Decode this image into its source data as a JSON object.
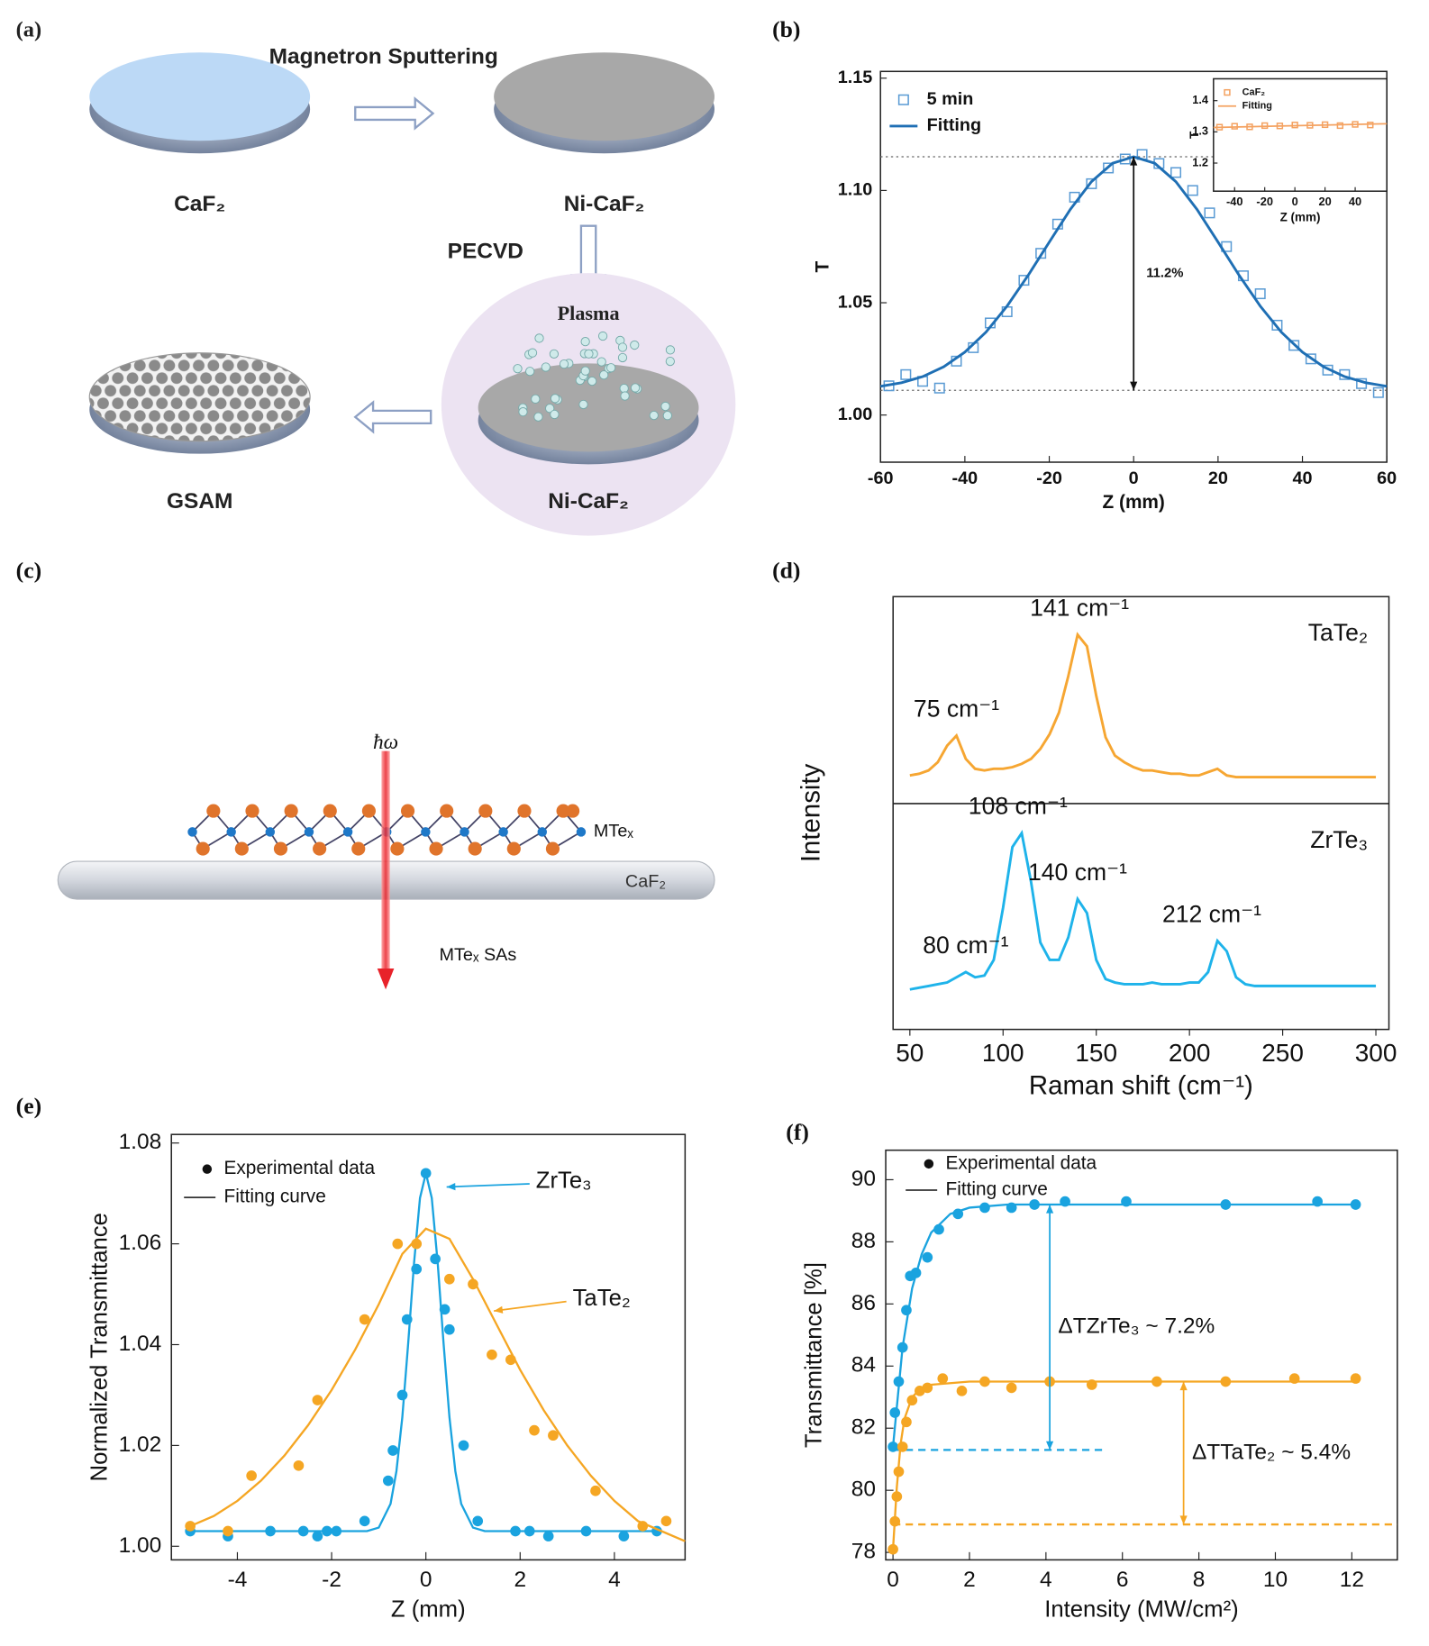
{
  "diagram_a": {
    "label": "(a)",
    "texts": [
      "Magnetron Sputtering",
      "CaF₂",
      "Ni-CaF₂",
      "PECVD",
      "Plasma",
      "Ni-CaF₂",
      "GSAM"
    ]
  },
  "diagram_c": {
    "label": "(c)",
    "texts": [
      "ħω",
      "MTeₓ",
      "CaF₂",
      "MTeₓ SAs"
    ]
  },
  "chart_data": [
    {
      "type": "xy",
      "label": "(b)",
      "xlabel": "Z (mm)",
      "ylabel": "T",
      "xlim": [
        -60,
        60
      ],
      "ylim": [
        0.979,
        1.153
      ],
      "xticks": [
        -60,
        -40,
        -20,
        0,
        20,
        40,
        60
      ],
      "yticks": [
        {
          "value": 1,
          "label": "1.00"
        },
        {
          "value": 1.05,
          "label": "1.05"
        },
        {
          "value": 1.1,
          "label": "1.10"
        },
        {
          "value": 1.15,
          "label": "1.15"
        }
      ],
      "reference_lines": [
        1.115,
        1.011
      ],
      "annotations": [
        {
          "text": "11.2%",
          "x": 0,
          "y_from": 1.115,
          "y_to": 1.011
        }
      ],
      "series": [
        {
          "name": "5 min",
          "mode": "markers",
          "marker": "square",
          "color": "#5a9bd4",
          "x": [
            -58,
            -54,
            -50,
            -46,
            -42,
            -38,
            -34,
            -30,
            -26,
            -22,
            -18,
            -14,
            -10,
            -6,
            -2,
            2,
            6,
            10,
            14,
            18,
            22,
            26,
            30,
            34,
            38,
            42,
            46,
            50,
            54,
            58
          ],
          "values": [
            1.013,
            1.018,
            1.015,
            1.012,
            1.024,
            1.03,
            1.041,
            1.046,
            1.06,
            1.072,
            1.085,
            1.097,
            1.103,
            1.11,
            1.114,
            1.116,
            1.112,
            1.108,
            1.1,
            1.09,
            1.075,
            1.062,
            1.054,
            1.04,
            1.031,
            1.025,
            1.02,
            1.018,
            1.014,
            1.01
          ]
        },
        {
          "name": "Fitting",
          "mode": "line",
          "color": "#1f6fb4",
          "x": [
            -60,
            -55,
            -50,
            -45,
            -40,
            -35,
            -30,
            -25,
            -20,
            -15,
            -10,
            -5,
            0,
            5,
            10,
            15,
            20,
            25,
            30,
            35,
            40,
            45,
            50,
            55,
            60
          ],
          "values": [
            1.0128,
            1.0144,
            1.0171,
            1.0215,
            1.028,
            1.0369,
            1.0485,
            1.0622,
            1.077,
            1.0916,
            1.1039,
            1.1121,
            1.115,
            1.1121,
            1.1039,
            1.0916,
            1.077,
            1.0622,
            1.0485,
            1.0369,
            1.028,
            1.0215,
            1.0171,
            1.0144,
            1.0128
          ]
        }
      ]
    },
    {
      "type": "xy",
      "xlabel": "Z (mm)",
      "ylabel": "T",
      "xlim": [
        -54,
        61
      ],
      "ylim": [
        1.11,
        1.47
      ],
      "xticks": [
        -40,
        -20,
        0,
        20,
        40
      ],
      "yticks": [
        1.2,
        1.3,
        1.4
      ],
      "series": [
        {
          "name": "CaF₂",
          "mode": "markers",
          "marker": "square",
          "color": "#f4a261",
          "x": [
            -50,
            -40,
            -30,
            -20,
            -10,
            0,
            10,
            20,
            30,
            40,
            50
          ],
          "values": [
            1.315,
            1.318,
            1.316,
            1.32,
            1.319,
            1.322,
            1.321,
            1.323,
            1.32,
            1.324,
            1.322
          ]
        },
        {
          "name": "Fitting",
          "mode": "line",
          "color": "#f4a261",
          "x": [
            -54,
            61
          ],
          "values": [
            1.314,
            1.326
          ]
        }
      ]
    },
    {
      "type": "stacked_line",
      "label": "(d)",
      "xlabel": "Raman shift (cm⁻¹)",
      "ylabel": "Intensity",
      "xlim": [
        41,
        307
      ],
      "xticks": [
        50,
        100,
        150,
        200,
        250,
        300
      ],
      "x": [
        50,
        55,
        60,
        65,
        70,
        75,
        80,
        85,
        90,
        95,
        100,
        105,
        110,
        115,
        120,
        125,
        130,
        135,
        140,
        145,
        150,
        155,
        160,
        165,
        170,
        175,
        180,
        185,
        190,
        195,
        200,
        205,
        210,
        215,
        220,
        225,
        230,
        235,
        240,
        245,
        250,
        255,
        260,
        265,
        270,
        275,
        280,
        285,
        290,
        295,
        300
      ],
      "series": [
        {
          "name": "TaTe₂",
          "color": "#f6a632",
          "ylim": [
            -0.05,
            1.2
          ],
          "values": [
            0.12,
            0.13,
            0.15,
            0.2,
            0.3,
            0.36,
            0.22,
            0.16,
            0.15,
            0.16,
            0.16,
            0.17,
            0.19,
            0.22,
            0.28,
            0.37,
            0.5,
            0.72,
            0.97,
            0.9,
            0.6,
            0.35,
            0.24,
            0.2,
            0.17,
            0.15,
            0.15,
            0.14,
            0.13,
            0.13,
            0.12,
            0.12,
            0.14,
            0.16,
            0.12,
            0.11,
            0.11,
            0.11,
            0.11,
            0.11,
            0.11,
            0.11,
            0.11,
            0.11,
            0.11,
            0.11,
            0.11,
            0.11,
            0.11,
            0.11,
            0.11
          ]
        },
        {
          "name": "ZrTe₃",
          "color": "#1eb3ea",
          "ylim": [
            -0.15,
            1.15
          ],
          "values": [
            0.08,
            0.09,
            0.1,
            0.11,
            0.12,
            0.15,
            0.18,
            0.15,
            0.16,
            0.25,
            0.55,
            0.9,
            0.98,
            0.7,
            0.35,
            0.25,
            0.25,
            0.38,
            0.6,
            0.52,
            0.25,
            0.14,
            0.12,
            0.11,
            0.11,
            0.11,
            0.12,
            0.11,
            0.11,
            0.11,
            0.12,
            0.12,
            0.18,
            0.36,
            0.3,
            0.15,
            0.11,
            0.1,
            0.1,
            0.1,
            0.1,
            0.1,
            0.1,
            0.1,
            0.1,
            0.1,
            0.1,
            0.1,
            0.1,
            0.1,
            0.1
          ]
        }
      ],
      "annotations": [
        {
          "text": "75 cm⁻¹",
          "x": 75,
          "series": 0
        },
        {
          "text": "141 cm⁻¹",
          "x": 141,
          "series": 0
        },
        {
          "text": "80 cm⁻¹",
          "x": 80,
          "series": 1
        },
        {
          "text": "108 cm⁻¹",
          "x": 108,
          "series": 1
        },
        {
          "text": "140 cm⁻¹",
          "x": 140,
          "series": 1
        },
        {
          "text": "212 cm⁻¹",
          "x": 212,
          "series": 1
        }
      ]
    },
    {
      "type": "xy",
      "label": "(e)",
      "xlabel": "Z (mm)",
      "ylabel": "Normalized Transmittance",
      "xlim": [
        -5.4,
        5.5
      ],
      "ylim": [
        0.9973,
        1.0817
      ],
      "xticks": [
        -4,
        -2,
        0,
        2,
        4
      ],
      "yticks": [
        {
          "value": 1,
          "label": "1.00"
        },
        {
          "value": 1.02,
          "label": "1.02"
        },
        {
          "value": 1.04,
          "label": "1.04"
        },
        {
          "value": 1.06,
          "label": "1.06"
        },
        {
          "value": 1.08,
          "label": "1.08"
        }
      ],
      "legend": [
        {
          "text": "Experimental data",
          "marker": "circle"
        },
        {
          "text": "Fitting curve",
          "marker": "line"
        }
      ],
      "series": [
        {
          "name": "ZrTe₃",
          "mode": "line",
          "color": "#1aa3df",
          "x": [
            -5,
            -2,
            -1.5,
            -1.25,
            -1,
            -0.75,
            -0.625,
            -0.5,
            -0.375,
            -0.25,
            -0.125,
            0,
            0.125,
            0.25,
            0.375,
            0.5,
            0.625,
            0.75,
            1,
            1.25,
            1.5,
            2,
            5
          ],
          "values": [
            1.003,
            1.003,
            1.003,
            1.003,
            1.0037,
            1.0084,
            1.0149,
            1.0256,
            1.0403,
            1.0563,
            1.0691,
            1.074,
            1.0691,
            1.0563,
            1.0403,
            1.0256,
            1.0149,
            1.0084,
            1.0037,
            1.003,
            1.003,
            1.003,
            1.003
          ]
        },
        {
          "mode": "markers",
          "marker": "circle",
          "color": "#1aa3df",
          "x": [
            -5,
            -4.2,
            -3.3,
            -2.6,
            -2.3,
            -2.1,
            -1.9,
            -1.3,
            -0.8,
            -0.7,
            -0.5,
            -0.4,
            -0.2,
            0,
            0.2,
            0.4,
            0.5,
            0.8,
            1.1,
            1.9,
            2.2,
            2.6,
            3.4,
            4.2,
            4.9
          ],
          "values": [
            1.003,
            1.002,
            1.003,
            1.003,
            1.002,
            1.003,
            1.003,
            1.005,
            1.013,
            1.019,
            1.03,
            1.045,
            1.055,
            1.074,
            1.057,
            1.047,
            1.043,
            1.02,
            1.005,
            1.003,
            1.003,
            1.002,
            1.003,
            1.002,
            1.003
          ]
        },
        {
          "name": "TaTe₂",
          "mode": "line",
          "color": "#f5a623",
          "x": [
            -5,
            -4.5,
            -4,
            -3.5,
            -3,
            -2.5,
            -2,
            -1.5,
            -1,
            -0.5,
            0,
            0.5,
            1,
            1.5,
            2,
            2.5,
            3,
            3.5,
            4,
            4.5,
            5,
            5.5
          ],
          "values": [
            1.004,
            1.006,
            1.009,
            1.013,
            1.018,
            1.024,
            1.031,
            1.039,
            1.048,
            1.058,
            1.063,
            1.061,
            1.053,
            1.044,
            1.035,
            1.027,
            1.02,
            1.014,
            1.009,
            1.005,
            1.003,
            1.001
          ]
        },
        {
          "mode": "markers",
          "marker": "circle",
          "color": "#f5a623",
          "x": [
            -5,
            -4.2,
            -3.7,
            -2.7,
            -2.3,
            -1.3,
            -0.6,
            -0.2,
            0.5,
            1,
            1.4,
            1.8,
            2.3,
            2.7,
            3.6,
            4.6,
            5.1
          ],
          "values": [
            1.004,
            1.003,
            1.014,
            1.016,
            1.029,
            1.045,
            1.06,
            1.06,
            1.053,
            1.052,
            1.038,
            1.037,
            1.023,
            1.022,
            1.011,
            1.004,
            1.005
          ]
        }
      ]
    },
    {
      "type": "xy",
      "label": "(f)",
      "xlabel": "Intensity (MW/cm²)",
      "ylabel": "Transmittance [%]",
      "xlim": [
        -0.19,
        13.19
      ],
      "ylim": [
        77.76,
        90.95
      ],
      "xticks": [
        0,
        2,
        4,
        6,
        8,
        10,
        12
      ],
      "yticks": [
        78,
        80,
        82,
        84,
        86,
        88,
        90
      ],
      "legend": [
        {
          "text": "Experimental data",
          "marker": "circle"
        },
        {
          "text": "Fitting curve",
          "marker": "line"
        }
      ],
      "reference_lines": [
        {
          "value": 81.3,
          "color": "#1aa3df",
          "x": [
            0,
            5.5
          ]
        },
        {
          "value": 78.9,
          "color": "#f5a623",
          "x": [
            0,
            13.19
          ]
        }
      ],
      "annotations": [
        {
          "text": "ΔTZrTe₃ ~ 7.2%",
          "color": "#1aa3df",
          "x": 4.1,
          "y_from": 89.2,
          "y_to": 81.3
        },
        {
          "text": "ΔTTaTe₂ ~ 5.4%",
          "color": "#f5a623",
          "x": 7.6,
          "y_from": 83.5,
          "y_to": 78.9
        }
      ],
      "series": [
        {
          "mode": "line",
          "color": "#1aa3df",
          "x": [
            0,
            0.25,
            0.5,
            0.75,
            1,
            1.5,
            2,
            3,
            4,
            6,
            8,
            10,
            12.2
          ],
          "values": [
            81.4,
            84.6,
            86.5,
            87.6,
            88.3,
            88.9,
            89.1,
            89.2,
            89.2,
            89.2,
            89.2,
            89.2,
            89.2
          ]
        },
        {
          "mode": "markers",
          "marker": "circle",
          "color": "#1aa3df",
          "x": [
            0,
            0.05,
            0.15,
            0.25,
            0.35,
            0.45,
            0.6,
            0.9,
            1.2,
            1.7,
            2.4,
            3.1,
            3.7,
            4.5,
            6.1,
            8.7,
            11.1,
            12.1
          ],
          "values": [
            81.4,
            82.5,
            83.5,
            84.6,
            85.8,
            86.9,
            87,
            87.5,
            88.4,
            88.9,
            89.1,
            89.1,
            89.2,
            89.3,
            89.3,
            89.2,
            89.3,
            89.2
          ]
        },
        {
          "mode": "line",
          "color": "#f5a623",
          "x": [
            0,
            0.1,
            0.2,
            0.3,
            0.5,
            0.75,
            1,
            2,
            4,
            8,
            12.2
          ],
          "values": [
            78.1,
            80.1,
            81.5,
            82.3,
            83,
            83.3,
            83.4,
            83.5,
            83.5,
            83.5,
            83.5
          ]
        },
        {
          "mode": "markers",
          "marker": "circle",
          "color": "#f5a623",
          "x": [
            0,
            0.05,
            0.1,
            0.15,
            0.25,
            0.35,
            0.5,
            0.7,
            0.9,
            1.3,
            1.8,
            2.4,
            3.1,
            4.1,
            5.2,
            6.9,
            8.7,
            10.5,
            12.1
          ],
          "values": [
            78.1,
            79,
            79.8,
            80.6,
            81.4,
            82.2,
            82.9,
            83.2,
            83.3,
            83.6,
            83.2,
            83.5,
            83.3,
            83.5,
            83.4,
            83.5,
            83.5,
            83.6,
            83.6
          ]
        }
      ]
    }
  ]
}
